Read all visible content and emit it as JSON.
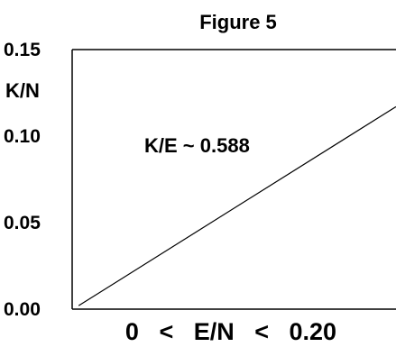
{
  "chart_data": {
    "type": "line",
    "title": "Figure 5",
    "ylabel": "K/N",
    "xlabel": "0   <   E/N   <   0.20",
    "annotation": "K/E ~ 0.588",
    "ylim": [
      0,
      0.15
    ],
    "xlim": [
      0,
      0.2
    ],
    "y_ticks": [
      {
        "value": 0.15,
        "label": "0.15"
      },
      {
        "value": 0.1,
        "label": "0.10"
      },
      {
        "value": 0.05,
        "label": "0.05"
      },
      {
        "value": 0.0,
        "label": "0.00"
      }
    ],
    "series": [
      {
        "x": [
          0.004,
          0.2
        ],
        "y": [
          0.002,
          0.117
        ]
      }
    ],
    "grid": false,
    "frame": "left-top-bottom"
  }
}
